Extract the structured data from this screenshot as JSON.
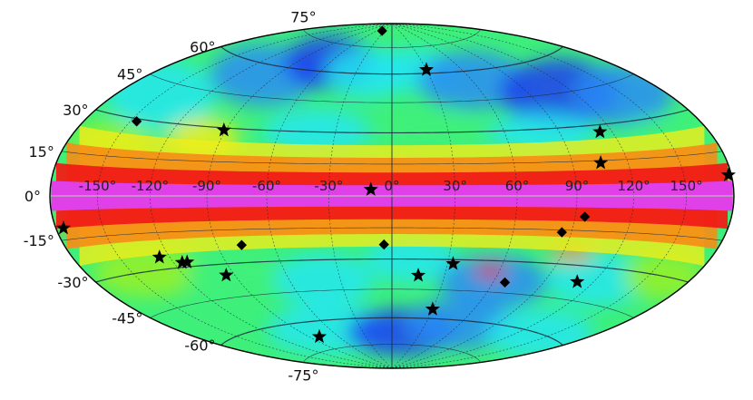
{
  "projection": "Aitoff-Hammer all-sky",
  "colors": {
    "background": "#ffffff",
    "outline": "#000000",
    "gridline": "#1a2a40",
    "equator_line": "#b8b8b8",
    "colormap": [
      "#1c3cf0",
      "#2a8cf5",
      "#25e6f0",
      "#3ef07a",
      "#9af024",
      "#f0ee1a",
      "#f78c16",
      "#f01c16",
      "#e040e8"
    ]
  },
  "map": {
    "lon_labels": [
      "-150°",
      "-120°",
      "-90°",
      "-60°",
      "-30°",
      "0°",
      "30°",
      "60°",
      "90°",
      "120°",
      "150°"
    ],
    "lon_values": [
      -150,
      -120,
      -90,
      -60,
      -30,
      0,
      30,
      60,
      90,
      120,
      150
    ],
    "lat_labels": [
      "75°",
      "60°",
      "45°",
      "30°",
      "15°",
      "0°",
      "-15°",
      "-30°",
      "-45°",
      "-60°",
      "-75°"
    ],
    "lat_values": [
      75,
      60,
      45,
      30,
      15,
      0,
      -15,
      -30,
      -45,
      -60,
      -75
    ]
  },
  "chart_data": {
    "type": "scatter",
    "xlim": [
      -180,
      180
    ],
    "ylim": [
      -90,
      90
    ],
    "grid": true,
    "series": [
      {
        "marker": "star",
        "points": [
          [
            -175,
            -11
          ],
          [
            -126,
            -25
          ],
          [
            -115,
            -28
          ],
          [
            -112,
            -28
          ],
          [
            -95,
            -35
          ],
          [
            -91,
            29
          ],
          [
            -80,
            -68
          ],
          [
            -10,
            3
          ],
          [
            15,
            -38
          ],
          [
            30,
            62
          ],
          [
            30,
            -55
          ],
          [
            33,
            -32
          ],
          [
            105,
            14
          ],
          [
            110,
            -37
          ],
          [
            113,
            27
          ],
          [
            178,
            7
          ]
        ]
      },
      {
        "marker": "diamond",
        "points": [
          [
            -146,
            29
          ],
          [
            -40,
            85
          ],
          [
            -77,
            -22
          ],
          [
            -4,
            -23
          ],
          [
            67,
            -40
          ],
          [
            85,
            -16
          ],
          [
            95,
            -9
          ]
        ]
      }
    ]
  }
}
